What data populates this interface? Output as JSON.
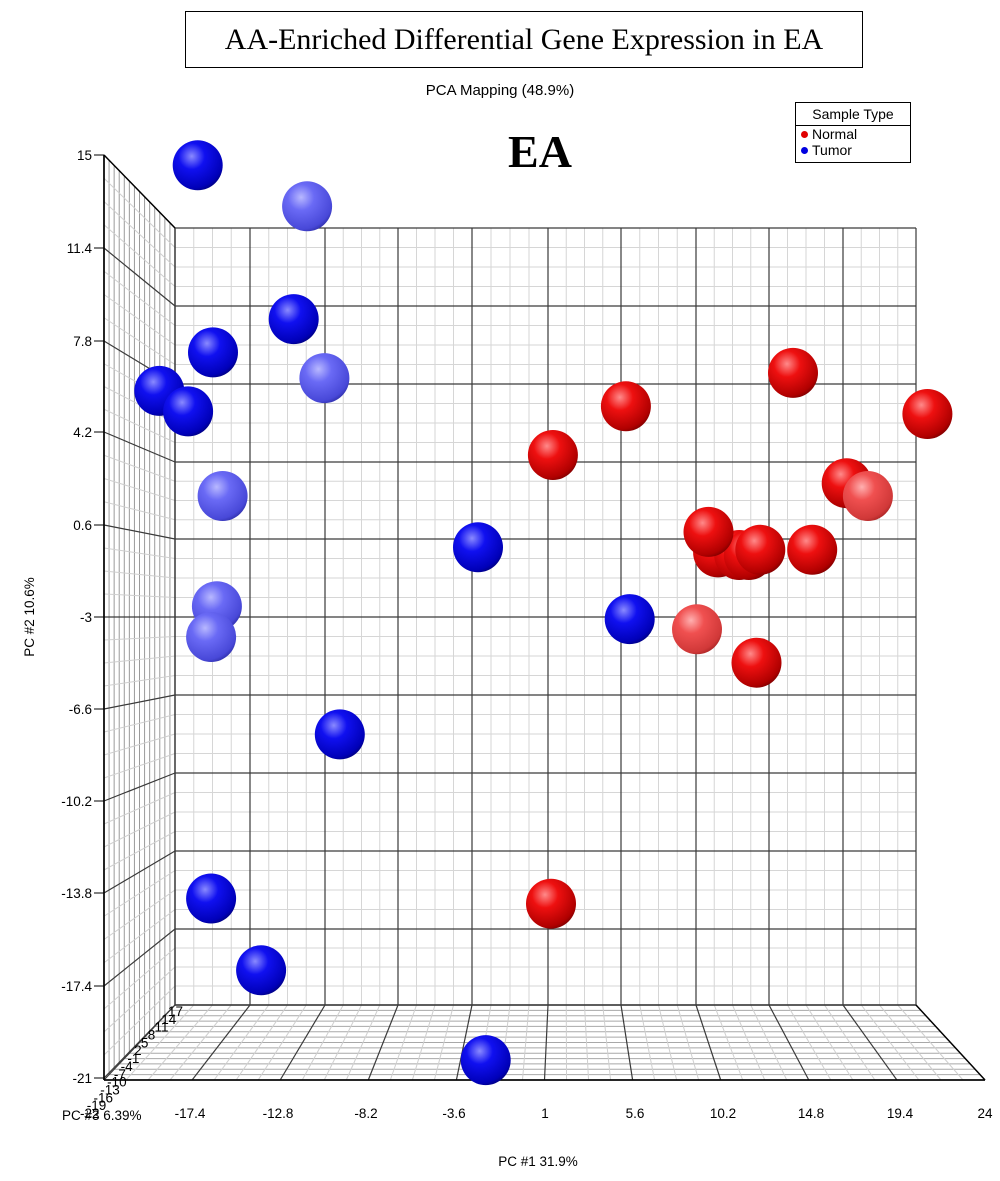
{
  "header": {
    "title": "AA-Enriched Differential Gene Expression in EA",
    "subtitle": "PCA Mapping (48.9%)",
    "panel_label": "EA"
  },
  "legend": {
    "title": "Sample Type",
    "items": [
      {
        "label": "Normal",
        "color": "#e00000"
      },
      {
        "label": "Tumor",
        "color": "#0000e0"
      }
    ]
  },
  "chart_data": {
    "type": "scatter",
    "plot_kind": "3d-pca",
    "xlabel": "PC #1 31.9%",
    "ylabel": "PC #2 10.6%",
    "zlabel": "PC #3 6.39%",
    "x_ticks": [
      "-17.4",
      "-12.8",
      "-8.2",
      "-3.6",
      "1",
      "5.6",
      "10.2",
      "14.8",
      "19.4",
      "24"
    ],
    "y_ticks": [
      "15",
      "11.4",
      "7.8",
      "4.2",
      "0.6",
      "-3",
      "-6.6",
      "-10.2",
      "-13.8",
      "-17.4",
      "-21"
    ],
    "z_ticks": [
      "17",
      "14",
      "11",
      "8",
      "5",
      "2",
      "-1",
      "-4",
      "-7",
      "-10",
      "-13",
      "-16",
      "-19",
      "-22"
    ],
    "xlim": [
      -22,
      24
    ],
    "ylim": [
      -21,
      15
    ],
    "colors": {
      "normal": "#e00000",
      "tumor": "#0000e0"
    },
    "series": [
      {
        "name": "Normal",
        "points": [
          {
            "x": 1.5,
            "y": 3.3,
            "depth": 0.0
          },
          {
            "x": 5.3,
            "y": 5.2,
            "depth": 0.0
          },
          {
            "x": 14.0,
            "y": 6.5,
            "depth": 0.0
          },
          {
            "x": 21.0,
            "y": 4.9,
            "depth": 0.0
          },
          {
            "x": 16.8,
            "y": 2.2,
            "depth": 0.0
          },
          {
            "x": 17.9,
            "y": 1.7,
            "depth": 0.3
          },
          {
            "x": 9.6,
            "y": 0.3,
            "depth": 0.1
          },
          {
            "x": 10.1,
            "y": -0.5,
            "depth": 0.0
          },
          {
            "x": 11.2,
            "y": -0.6,
            "depth": 0.0
          },
          {
            "x": 11.7,
            "y": -0.6,
            "depth": 0.0
          },
          {
            "x": 12.3,
            "y": -0.4,
            "depth": 0.0
          },
          {
            "x": 15.0,
            "y": -0.4,
            "depth": 0.1
          },
          {
            "x": 9.0,
            "y": -3.5,
            "depth": 0.35
          },
          {
            "x": 12.1,
            "y": -4.8,
            "depth": 0.0
          },
          {
            "x": 1.4,
            "y": -14.2,
            "depth": 0.0
          }
        ]
      },
      {
        "name": "Tumor",
        "points": [
          {
            "x": -17.0,
            "y": 14.6,
            "depth": 1.0
          },
          {
            "x": -11.3,
            "y": 13.0,
            "depth": 0.35
          },
          {
            "x": -12.0,
            "y": 8.6,
            "depth": 0.1
          },
          {
            "x": -16.2,
            "y": 7.3,
            "depth": 0.0
          },
          {
            "x": -10.4,
            "y": 6.3,
            "depth": 0.3
          },
          {
            "x": -19.0,
            "y": 5.8,
            "depth": 1.0
          },
          {
            "x": -17.5,
            "y": 5.0,
            "depth": 1.0
          },
          {
            "x": -15.7,
            "y": 1.7,
            "depth": 0.35
          },
          {
            "x": -2.4,
            "y": -0.3,
            "depth": 0.0
          },
          {
            "x": -16.0,
            "y": -2.6,
            "depth": 0.3
          },
          {
            "x": -16.3,
            "y": -3.8,
            "depth": 0.3
          },
          {
            "x": 5.5,
            "y": -3.1,
            "depth": 0.0
          },
          {
            "x": -9.6,
            "y": -7.6,
            "depth": 0.0
          },
          {
            "x": -16.3,
            "y": -14.0,
            "depth": 1.0
          },
          {
            "x": -13.7,
            "y": -16.8,
            "depth": 0.1
          },
          {
            "x": -2.0,
            "y": -20.3,
            "depth": 0.0
          }
        ]
      }
    ]
  }
}
